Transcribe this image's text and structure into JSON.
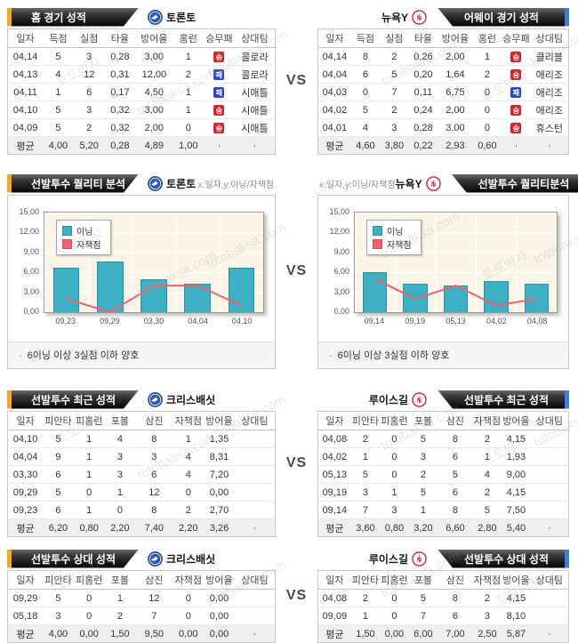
{
  "vs_label": "VS",
  "bullet": "·",
  "watermark": {
    "line1": "토토박사",
    "line2": "totobaksa.com"
  },
  "badges": {
    "win": "승",
    "loss": "패"
  },
  "colors": {
    "accent_left": "#f7a823",
    "accent_right": "#3d7de0",
    "bar": "#3cb1c3",
    "line": "#f45f6f",
    "win_badge": "#d8262c",
    "loss_badge": "#2d47c6"
  },
  "sections": [
    {
      "id": "game-record",
      "type": "table",
      "panels": [
        {
          "side": "left",
          "title": "홈 경기 성적",
          "team": "토론토",
          "logo": "toronto",
          "columns": [
            "일자",
            "득점",
            "실점",
            "타율",
            "방어율",
            "홈런",
            "승무패",
            "상대팀"
          ],
          "rows": [
            [
              "04,14",
              "5",
              "3",
              "0,28",
              "3,00",
              "1",
              {
                "badge": "win"
              },
              "콜로라"
            ],
            [
              "04,13",
              "4",
              "12",
              "0,31",
              "12,00",
              "2",
              {
                "badge": "loss"
              },
              "콜로라"
            ],
            [
              "04,11",
              "1",
              "6",
              "0,17",
              "4,50",
              "1",
              {
                "badge": "loss"
              },
              "시애틀"
            ],
            [
              "04,10",
              "5",
              "3",
              "0,32",
              "3,00",
              "1",
              {
                "badge": "win"
              },
              "시애틀"
            ],
            [
              "04,09",
              "5",
              "2",
              "0,32",
              "2,00",
              "0",
              {
                "badge": "win"
              },
              "시애틀"
            ]
          ],
          "avg_row": [
            "평균",
            "4,00",
            "5,20",
            "0,28",
            "4,89",
            "1,00",
            "·",
            "·"
          ]
        },
        {
          "side": "right",
          "title": "어웨이 경기 성적",
          "team": "뉴욕Y",
          "logo": "yankees",
          "columns": [
            "일자",
            "득점",
            "실점",
            "타율",
            "방어율",
            "홈런",
            "승무패",
            "상대팀"
          ],
          "rows": [
            [
              "04,14",
              "8",
              "2",
              "0,26",
              "2,00",
              "1",
              {
                "badge": "win"
              },
              "클리블"
            ],
            [
              "04,04",
              "6",
              "5",
              "0,20",
              "1,64",
              "2",
              {
                "badge": "win"
              },
              "애리조"
            ],
            [
              "04,03",
              "0",
              "7",
              "0,11",
              "6,75",
              "0",
              {
                "badge": "loss"
              },
              "애리조"
            ],
            [
              "04,02",
              "5",
              "2",
              "0,24",
              "2,00",
              "0",
              {
                "badge": "win"
              },
              "애리조"
            ],
            [
              "04,01",
              "4",
              "3",
              "0,28",
              "3,00",
              "0",
              {
                "badge": "win"
              },
              "휴스턴"
            ]
          ],
          "avg_row": [
            "평균",
            "4,60",
            "3,80",
            "0,22",
            "2,93",
            "0,60",
            "·",
            "·"
          ]
        }
      ]
    },
    {
      "id": "pitcher-quality",
      "type": "chart",
      "panels": [
        {
          "side": "left",
          "title": "선발투수 퀄리티 분석",
          "team": "토론토",
          "logo": "toronto",
          "axis_note": "x:일자,y:이닝/자책점",
          "footnote": "6이닝 이상 3실점 이하 양호",
          "chart_data": {
            "type": "bar+line",
            "categories": [
              "09,23",
              "09,29",
              "03,30",
              "04,04",
              "04,10"
            ],
            "series": [
              {
                "name": "이닝",
                "type": "bar",
                "values": [
                  6.67,
                  7.67,
                  5,
                  4.33,
                  6.67
                ]
              },
              {
                "name": "자책점",
                "type": "line",
                "values": [
                  2,
                  0,
                  4,
                  4,
                  1
                ]
              }
            ],
            "ylim": [
              0,
              15
            ],
            "legend_position": "top-left",
            "grid": true,
            "yticks": [
              {
                "v": 0,
                "label": "0,00"
              },
              {
                "v": 3,
                "label": "3,00"
              },
              {
                "v": 6,
                "label": "6,00"
              },
              {
                "v": 9,
                "label": "9,00"
              },
              {
                "v": 12,
                "label": "12,00"
              },
              {
                "v": 15,
                "label": "15,00"
              }
            ]
          }
        },
        {
          "side": "right",
          "title": "선발투수 퀄리티분석",
          "team": "뉴욕Y",
          "logo": "yankees",
          "axis_note": "x:일자,y:이닝/자책점",
          "footnote": "6이닝 이상 3실점 이하 양호",
          "chart_data": {
            "type": "bar+line",
            "categories": [
              "09,14",
              "09,19",
              "05,13",
              "04,02",
              "04,08"
            ],
            "series": [
              {
                "name": "이닝",
                "type": "bar",
                "values": [
                  6,
                  4.33,
                  4,
                  4.67,
                  4.33
                ]
              },
              {
                "name": "자책점",
                "type": "line",
                "values": [
                  5,
                  2,
                  4,
                  1,
                  2
                ]
              }
            ],
            "ylim": [
              0,
              15
            ],
            "legend_position": "top-left",
            "grid": true,
            "yticks": [
              {
                "v": 0,
                "label": "0,00"
              },
              {
                "v": 3,
                "label": "3,00"
              },
              {
                "v": 6,
                "label": "6,00"
              },
              {
                "v": 9,
                "label": "9,00"
              },
              {
                "v": 12,
                "label": "12,00"
              },
              {
                "v": 15,
                "label": "15,00"
              }
            ]
          }
        }
      ]
    },
    {
      "id": "pitcher-recent",
      "type": "table",
      "panels": [
        {
          "side": "left",
          "title": "선발투수 최근 성적",
          "team": "크리스배싯",
          "logo": "toronto",
          "columns": [
            "일자",
            "피안타",
            "피홈런",
            "포볼",
            "삼진",
            "자책점",
            "방어율",
            "상대팀"
          ],
          "rows": [
            [
              "04,10",
              "5",
              "1",
              "4",
              "8",
              "1",
              "1,35",
              ""
            ],
            [
              "04,04",
              "9",
              "1",
              "3",
              "3",
              "4",
              "8,31",
              ""
            ],
            [
              "03,30",
              "6",
              "1",
              "3",
              "6",
              "4",
              "7,20",
              ""
            ],
            [
              "09,29",
              "5",
              "0",
              "1",
              "12",
              "0",
              "0,00",
              ""
            ],
            [
              "09,23",
              "6",
              "1",
              "0",
              "8",
              "2",
              "2,70",
              ""
            ]
          ],
          "avg_row": [
            "평균",
            "6,20",
            "0,80",
            "2,20",
            "7,40",
            "2,20",
            "3,26",
            "·"
          ]
        },
        {
          "side": "right",
          "title": "선발투수 최근 성적",
          "team": "루이스길",
          "logo": "yankees",
          "columns": [
            "일자",
            "피안타",
            "피홈런",
            "포볼",
            "삼진",
            "자책점",
            "방어율",
            "상대팀"
          ],
          "rows": [
            [
              "04,08",
              "2",
              "0",
              "5",
              "8",
              "2",
              "4,15",
              ""
            ],
            [
              "04,02",
              "1",
              "0",
              "3",
              "6",
              "1",
              "1,93",
              ""
            ],
            [
              "05,13",
              "5",
              "0",
              "2",
              "5",
              "4",
              "9,00",
              ""
            ],
            [
              "09,19",
              "3",
              "1",
              "5",
              "6",
              "2",
              "4,15",
              ""
            ],
            [
              "09,14",
              "7",
              "3",
              "1",
              "8",
              "5",
              "7,50",
              ""
            ]
          ],
          "avg_row": [
            "평균",
            "3,60",
            "0,80",
            "3,20",
            "6,60",
            "2,80",
            "5,40",
            "·"
          ]
        }
      ]
    },
    {
      "id": "pitcher-vs-opponent",
      "type": "table",
      "panels": [
        {
          "side": "left",
          "title": "선발투수 상대 성적",
          "team": "크리스배싯",
          "logo": "toronto",
          "columns": [
            "일자",
            "피안타",
            "피홈런",
            "포볼",
            "삼진",
            "자책점",
            "방어율",
            "상대팀"
          ],
          "rows": [
            [
              "09,29",
              "5",
              "0",
              "1",
              "12",
              "0",
              "0,00",
              ""
            ],
            [
              "05,18",
              "3",
              "0",
              "2",
              "7",
              "0",
              "0,00",
              ""
            ]
          ],
          "avg_row": [
            "평균",
            "4,00",
            "0,00",
            "1,50",
            "9,50",
            "0,00",
            "0,00",
            "·"
          ]
        },
        {
          "side": "right",
          "title": "선발투수 상대 성적",
          "team": "루이스길",
          "logo": "yankees",
          "columns": [
            "일자",
            "피안타",
            "피홈런",
            "포볼",
            "삼진",
            "자책점",
            "방어율",
            "상대팀"
          ],
          "rows": [
            [
              "04,08",
              "2",
              "0",
              "5",
              "8",
              "2",
              "4,15",
              ""
            ],
            [
              "09,09",
              "1",
              "0",
              "7",
              "6",
              "3",
              "8,10",
              ""
            ]
          ],
          "avg_row": [
            "평균",
            "1,50",
            "0,00",
            "6,00",
            "7,00",
            "2,50",
            "5,87",
            "·"
          ]
        }
      ]
    }
  ]
}
